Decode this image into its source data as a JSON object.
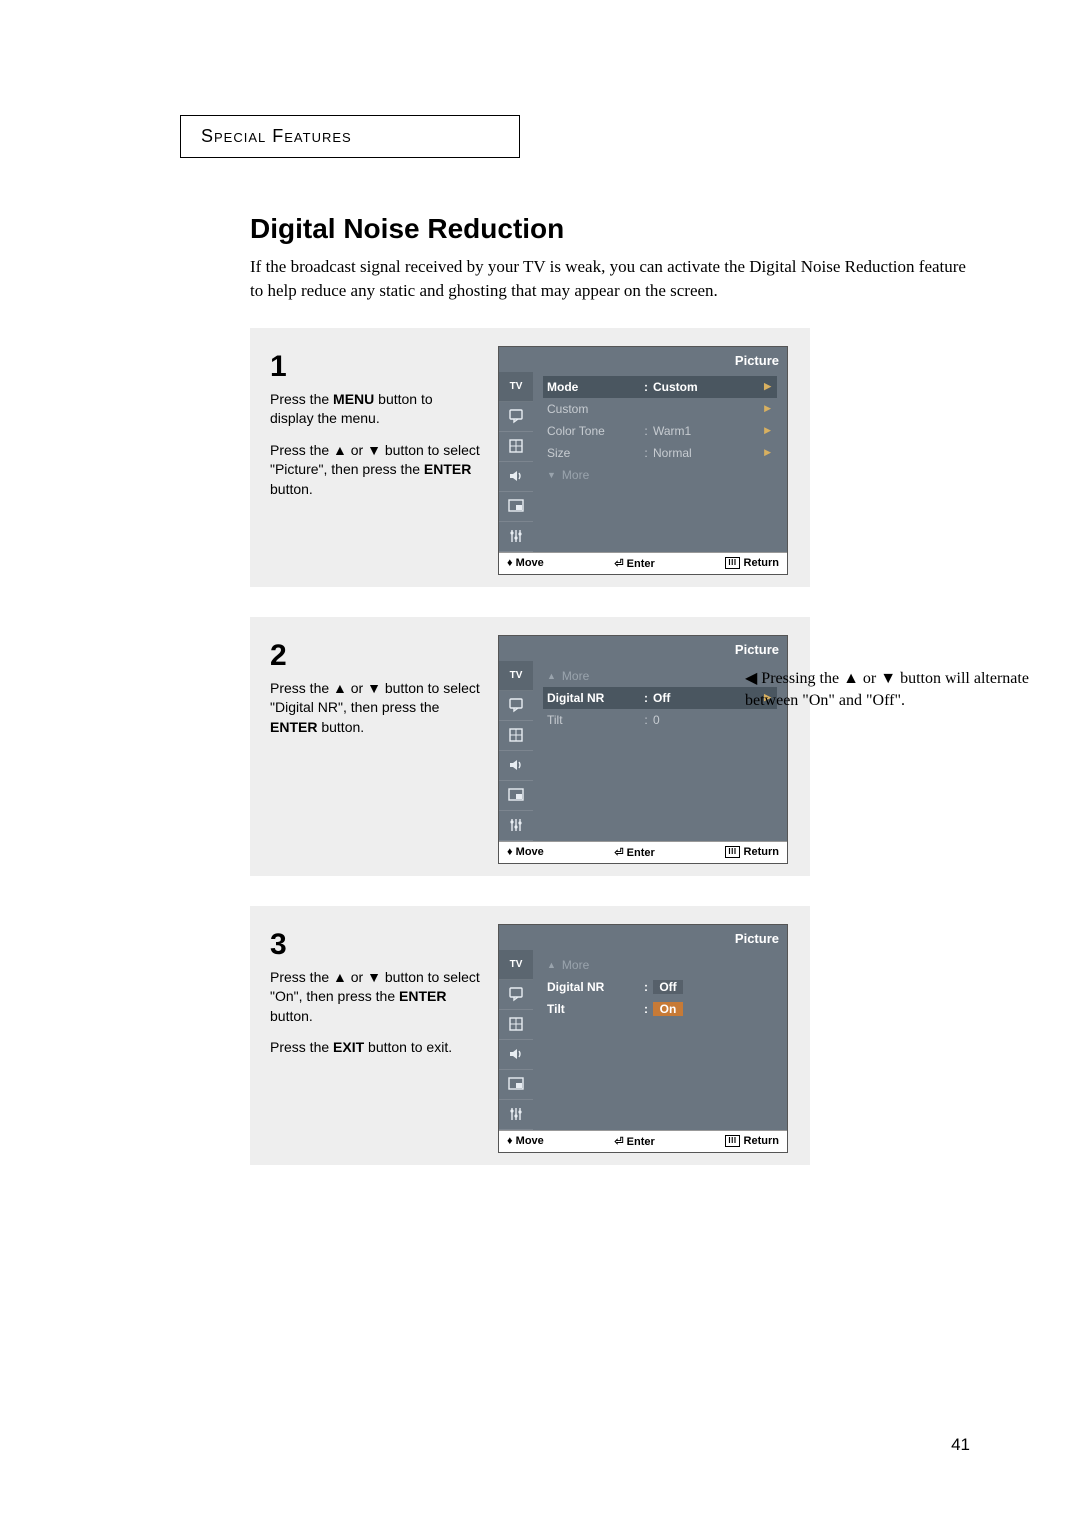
{
  "header": "Special Features",
  "title": "Digital Noise Reduction",
  "intro": "If the broadcast signal received by your TV is weak, you can activate the Digital Noise Reduction feature to help reduce any static and ghosting that may appear on the screen.",
  "pageNumber": "41",
  "steps": [
    {
      "num": "1",
      "paras": [
        "Press the <b>MENU</b> button to display the menu.",
        "Press the ▲ or ▼ button to select \"Picture\", then press the <b>ENTER</b> button."
      ],
      "osd": {
        "title": "Picture",
        "rows": [
          {
            "type": "sel",
            "label": "Mode",
            "value": "Custom",
            "caret": true
          },
          {
            "type": "item",
            "label": "Custom",
            "value": "",
            "caret": true
          },
          {
            "type": "item",
            "label": "Color Tone",
            "value": "Warm1",
            "caret": true
          },
          {
            "type": "item",
            "label": "Size",
            "value": "Normal",
            "caret": true
          },
          {
            "type": "more-down"
          }
        ],
        "footer": {
          "move": "Move",
          "enter": "Enter",
          "ret": "Return"
        }
      }
    },
    {
      "num": "2",
      "paras": [
        "Press the ▲ or ▼ button to select \"Digital NR\", then press the <b>ENTER</b> button."
      ],
      "osd": {
        "title": "Picture",
        "rows": [
          {
            "type": "more-up"
          },
          {
            "type": "sel",
            "label": "Digital NR",
            "value": "Off",
            "caret": true
          },
          {
            "type": "item",
            "label": "Tilt",
            "value": "0"
          }
        ],
        "footer": {
          "move": "Move",
          "enter": "Enter",
          "ret": "Return"
        }
      }
    },
    {
      "num": "3",
      "paras": [
        "Press the ▲ or ▼ button to select \"On\", then press the <b>ENTER</b> button.",
        "Press the <b>EXIT</b> button to exit."
      ],
      "osd": {
        "title": "Picture",
        "rows": [
          {
            "type": "more-up"
          },
          {
            "type": "bold",
            "label": "Digital NR",
            "boxes": [
              {
                "text": "Off",
                "hl": false
              }
            ]
          },
          {
            "type": "bold",
            "label": "Tilt",
            "boxes": [
              {
                "text": "On",
                "hl": true
              }
            ]
          }
        ],
        "footer": {
          "move": "Move",
          "enter": "Enter",
          "ret": "Return"
        }
      }
    }
  ],
  "sideNote": {
    "pre": "◀  Pressing the ▲ or ▼ button will alternate between \"On\" and \"Off\"."
  },
  "tabs": [
    "TV",
    "chat",
    "grid",
    "sound",
    "pip",
    "setup"
  ],
  "colors": {
    "osdBg": "#6a7580",
    "osdSel": "#4a5660",
    "stepBg": "#eeeeee",
    "highlightBox": "#c77a36"
  }
}
